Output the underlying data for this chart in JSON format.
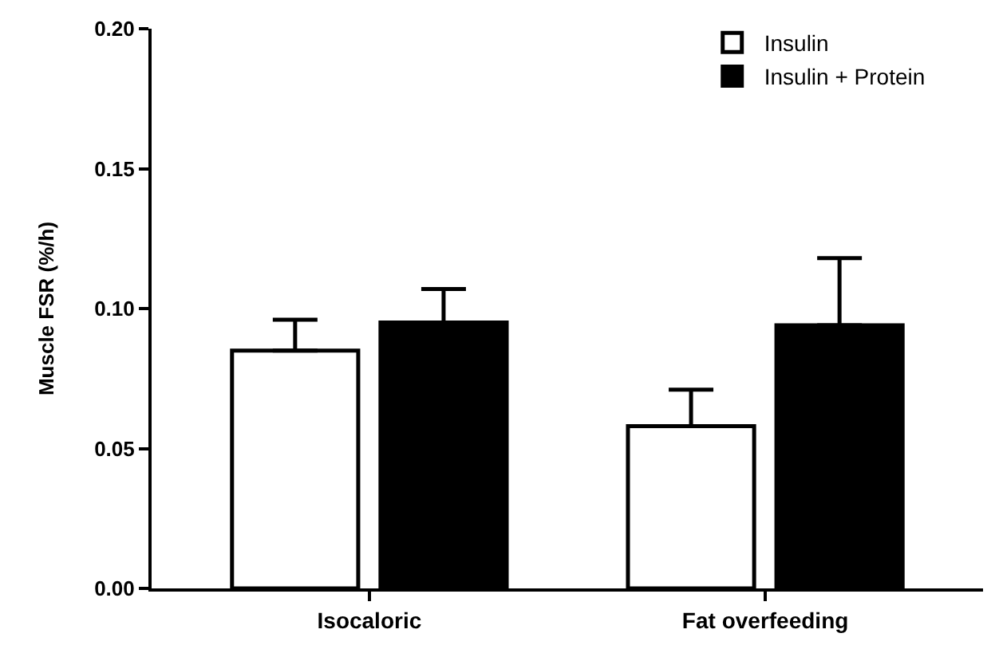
{
  "chart_data": {
    "type": "bar",
    "ylabel": "Muscle FSR (%/h)",
    "categories": [
      "Isocaloric",
      "Fat overfeeding"
    ],
    "series": [
      {
        "name": "Insulin",
        "color": "#ffffff",
        "values": [
          0.085,
          0.058
        ],
        "errors": [
          [
            0.085,
            0.096
          ],
          [
            0.058,
            0.071
          ]
        ]
      },
      {
        "name": "Insulin + Protein",
        "color": "#000000",
        "values": [
          0.095,
          0.094
        ],
        "errors": [
          [
            0.095,
            0.107
          ],
          [
            0.094,
            0.118
          ]
        ]
      }
    ],
    "ylim": [
      0,
      0.2
    ],
    "yticks": [
      {
        "value": 0,
        "label": "0.00"
      },
      {
        "value": 0.05,
        "label": "0.05"
      },
      {
        "value": 0.1,
        "label": "0.10"
      },
      {
        "value": 0.15,
        "label": "0.15"
      },
      {
        "value": 0.2,
        "label": "0.20"
      }
    ],
    "legend": "top right"
  }
}
